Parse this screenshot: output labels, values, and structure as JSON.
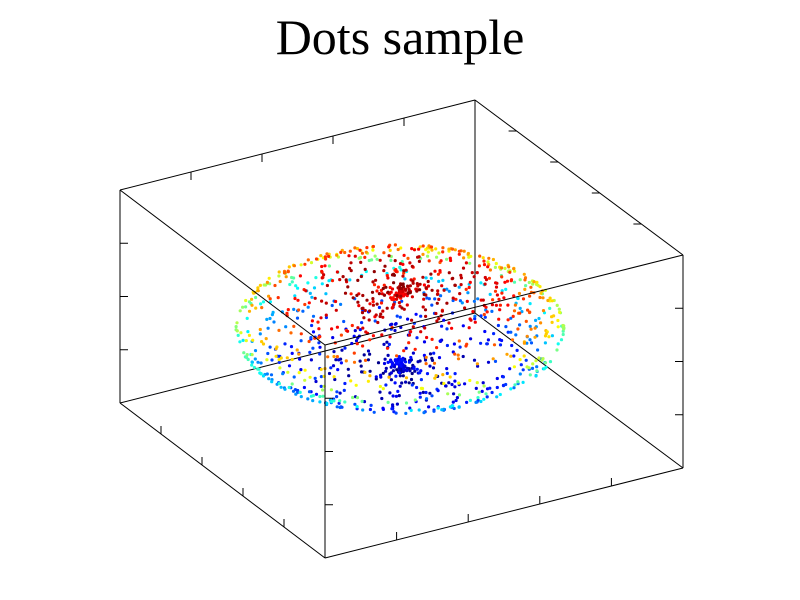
{
  "chart_data": {
    "type": "scatter",
    "title": "Dots sample",
    "grid": false,
    "legend": "none",
    "axis_ticks_visible": true,
    "axis_tick_labels": false,
    "color_by": "z",
    "colormap": [
      "#0000ff",
      "#00ffff",
      "#ffff00",
      "#ff0000"
    ],
    "point_cloud": {
      "shape": "ellipsoid shell with dense disc-like center",
      "center": [
        0,
        0,
        0
      ],
      "semi_axes": [
        1.0,
        1.0,
        0.35
      ],
      "approx_point_count": 1200
    },
    "xlim": [
      -1,
      1
    ],
    "ylim": [
      -1,
      1
    ],
    "zlim": [
      -1,
      1
    ]
  }
}
